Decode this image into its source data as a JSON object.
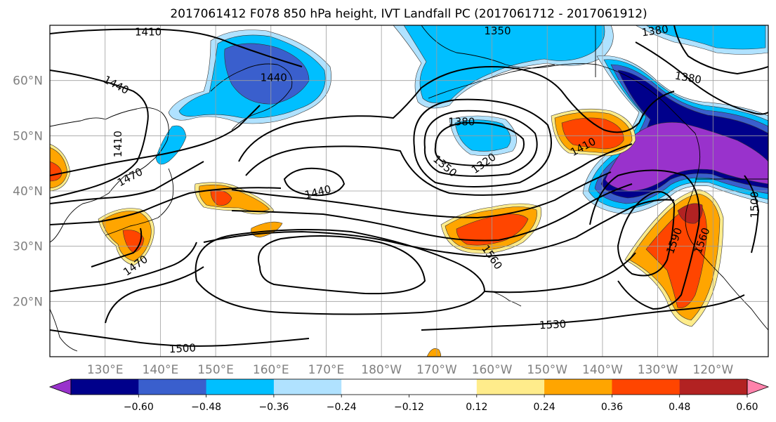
{
  "title": "2017061412 F078 850 hPa height, IVT Landfall PC (2017061712 - 2017061912)",
  "map": {
    "projection": "cylindrical",
    "lon_range": [
      120,
      250
    ],
    "lat_range": [
      10,
      70
    ],
    "lat_ticks": [
      {
        "lat": 60,
        "label": "60°N"
      },
      {
        "lat": 50,
        "label": "50°N"
      },
      {
        "lat": 40,
        "label": "40°N"
      },
      {
        "lat": 30,
        "label": "30°N"
      },
      {
        "lat": 20,
        "label": "20°N"
      }
    ],
    "lon_ticks": [
      {
        "lon": 130,
        "label": "130°E"
      },
      {
        "lon": 140,
        "label": "140°E"
      },
      {
        "lon": 150,
        "label": "150°E"
      },
      {
        "lon": 160,
        "label": "160°E"
      },
      {
        "lon": 170,
        "label": "170°E"
      },
      {
        "lon": 180,
        "label": "180°W"
      },
      {
        "lon": 190,
        "label": "170°W"
      },
      {
        "lon": 200,
        "label": "160°W"
      },
      {
        "lon": 210,
        "label": "150°W"
      },
      {
        "lon": 220,
        "label": "140°W"
      },
      {
        "lon": 230,
        "label": "130°W"
      },
      {
        "lon": 240,
        "label": "120°W"
      }
    ],
    "grid": true
  },
  "colorbar": {
    "colors": [
      "#9932cc",
      "#00008b",
      "#3a5fcd",
      "#00bfff",
      "#b0e2ff",
      "#ffffff",
      "#ffffff",
      "#ffec8b",
      "#ffa500",
      "#ff4500",
      "#b22222",
      "#ff82ab"
    ],
    "ticks": [
      "−0.60",
      "−0.48",
      "−0.36",
      "−0.24",
      "−0.12",
      "0.12",
      "0.24",
      "0.36",
      "0.48",
      "0.60"
    ],
    "extend": "both"
  },
  "contour_labels": [
    {
      "text": "1410",
      "lon": 137.8,
      "lat": 68.8,
      "rot": 0
    },
    {
      "text": "1350",
      "lon": 201,
      "lat": 69,
      "rot": 0
    },
    {
      "text": "1380",
      "lon": 229.5,
      "lat": 69,
      "rot": -8
    },
    {
      "text": "1440",
      "lon": 132,
      "lat": 59.2,
      "rot": 28
    },
    {
      "text": "1440",
      "lon": 160.5,
      "lat": 60.5,
      "rot": 0
    },
    {
      "text": "1380",
      "lon": 235.5,
      "lat": 60.5,
      "rot": 10
    },
    {
      "text": "1410",
      "lon": 132.3,
      "lat": 48.5,
      "rot": -90
    },
    {
      "text": "1380",
      "lon": 194.5,
      "lat": 52.5,
      "rot": 0
    },
    {
      "text": "1410",
      "lon": 216.5,
      "lat": 48,
      "rot": -28
    },
    {
      "text": "1350",
      "lon": 191.5,
      "lat": 44.5,
      "rot": 40
    },
    {
      "text": "1320",
      "lon": 198.5,
      "lat": 45,
      "rot": -35
    },
    {
      "text": "1470",
      "lon": 134.5,
      "lat": 42.5,
      "rot": -28
    },
    {
      "text": "1440",
      "lon": 168.5,
      "lat": 39.8,
      "rot": -14
    },
    {
      "text": "1560",
      "lon": 200,
      "lat": 28,
      "rot": 55
    },
    {
      "text": "1590",
      "lon": 233,
      "lat": 31,
      "rot": -70
    },
    {
      "text": "1560",
      "lon": 238,
      "lat": 31,
      "rot": -70
    },
    {
      "text": "1500",
      "lon": 247.5,
      "lat": 37.5,
      "rot": -90
    },
    {
      "text": "1470",
      "lon": 135.5,
      "lat": 26.5,
      "rot": -35
    },
    {
      "text": "1530",
      "lon": 211,
      "lat": 15.8,
      "rot": -3
    },
    {
      "text": "1500",
      "lon": 144,
      "lat": 11.5,
      "rot": -3
    }
  ]
}
